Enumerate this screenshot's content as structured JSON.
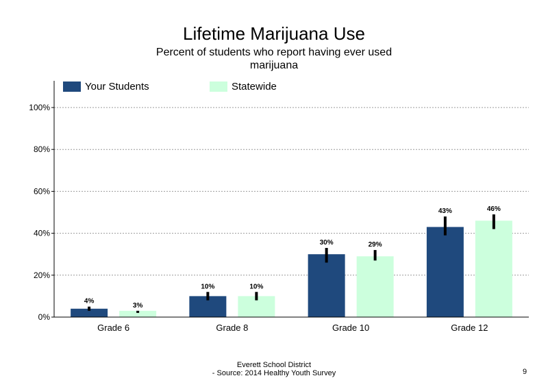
{
  "title": "Lifetime Marijuana Use",
  "subtitle_line1": "Percent of students  who report having ever used",
  "subtitle_line2": "marijuana",
  "footer_line1": "Everett School District",
  "footer_line2": "- Source: 2014 Healthy  Youth Survey",
  "page_number": "9",
  "colors": {
    "your_students": "#1f497d",
    "statewide": "#ccffdd",
    "error_bar": "#000000"
  },
  "chart_data": {
    "type": "bar",
    "title": "Lifetime Marijuana Use",
    "subtitle": "Percent of students  who report having ever used marijuana",
    "xlabel": "",
    "ylabel": "",
    "categories": [
      "Grade 6",
      "Grade 8",
      "Grade 10",
      "Grade 12"
    ],
    "ylim": [
      0,
      100
    ],
    "yticks": [
      "0%",
      "20%",
      "40%",
      "60%",
      "80%",
      "100%"
    ],
    "grid": true,
    "legend": "top-left",
    "series": [
      {
        "name": "Your Students",
        "values": [
          4,
          10,
          30,
          43
        ],
        "labels": [
          "4%",
          "10%",
          "30%",
          "43%"
        ],
        "error_low": [
          3,
          8,
          26,
          39
        ],
        "error_high": [
          5,
          12,
          33,
          48
        ]
      },
      {
        "name": "Statewide",
        "values": [
          3,
          10,
          29,
          46
        ],
        "labels": [
          "3%",
          "10%",
          "29%",
          "46%"
        ],
        "error_low": [
          2,
          8,
          27,
          42
        ],
        "error_high": [
          3,
          12,
          32,
          49
        ]
      }
    ]
  }
}
